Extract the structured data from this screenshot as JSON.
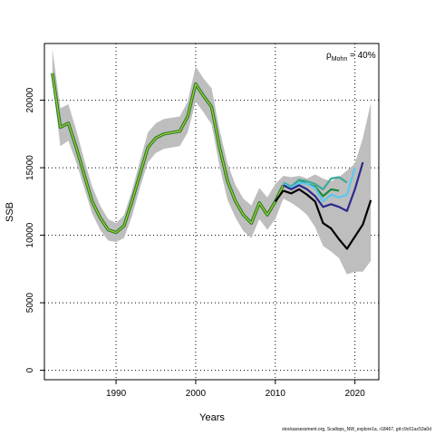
{
  "chart_data": {
    "type": "line",
    "xlabel": "Years",
    "ylabel": "SSB",
    "xlim": [
      1981,
      2023
    ],
    "ylim": [
      -700,
      24200
    ],
    "x_ticks": [
      1990,
      2000,
      2010,
      2020
    ],
    "y_ticks": [
      0,
      5000,
      10000,
      15000,
      20000
    ],
    "grid": "dotted",
    "annotation": {
      "rho": "ρ",
      "subscript": "Mohn",
      "text": " = 40%"
    },
    "base_years": [
      1982,
      1983,
      1984,
      1985,
      1986,
      1987,
      1988,
      1989,
      1990,
      1991,
      1992,
      1993,
      1994,
      1995,
      1996,
      1997,
      1998,
      1999,
      2000,
      2001,
      2002,
      2003,
      2004,
      2005,
      2006,
      2007,
      2008,
      2009,
      2010,
      2011
    ],
    "base_values": [
      22000,
      18000,
      18300,
      16500,
      14500,
      12500,
      11300,
      10400,
      10200,
      10700,
      12500,
      14500,
      16500,
      17200,
      17500,
      17600,
      17700,
      18800,
      21200,
      20300,
      19500,
      16500,
      14000,
      12500,
      11500,
      10900,
      12400,
      11500,
      12500,
      13700
    ],
    "envelope": {
      "years": [
        1982,
        1983,
        1984,
        1985,
        1986,
        1987,
        1988,
        1989,
        1990,
        1991,
        1992,
        1993,
        1994,
        1995,
        1996,
        1997,
        1998,
        1999,
        2000,
        2001,
        2002,
        2003,
        2004,
        2005,
        2006,
        2007,
        2008,
        2009,
        2010,
        2011,
        2012,
        2013,
        2014,
        2015,
        2016,
        2017,
        2018,
        2019,
        2020,
        2021,
        2022
      ],
      "upper": [
        23800,
        19400,
        19700,
        17800,
        15600,
        13600,
        12200,
        11200,
        10900,
        11500,
        13300,
        15500,
        17600,
        18300,
        18600,
        18700,
        18800,
        19900,
        22500,
        21600,
        20900,
        17800,
        15300,
        13700,
        12700,
        12200,
        13500,
        12800,
        13800,
        14400,
        14300,
        14400,
        14200,
        14500,
        14200,
        14000,
        14300,
        14800,
        15300,
        17200,
        19800
      ],
      "lower": [
        21500,
        16600,
        17000,
        15400,
        13500,
        11600,
        10400,
        9600,
        9500,
        9800,
        11400,
        13500,
        15400,
        16100,
        16400,
        16500,
        16600,
        17600,
        19900,
        19100,
        18200,
        15100,
        12600,
        11300,
        10300,
        9800,
        11200,
        10400,
        11200,
        12700,
        12400,
        12000,
        11500,
        10600,
        9200,
        8800,
        8300,
        7100,
        7300,
        7300,
        8100
      ]
    },
    "series": [
      {
        "years": [
          2011,
          2012,
          2013,
          2014,
          2015,
          2016,
          2017,
          2018,
          2019,
          2020,
          2021,
          2022
        ],
        "values": [
          13300,
          13100,
          13400,
          13000,
          12500,
          10900,
          10500,
          9700,
          9000,
          9900,
          10800,
          12600
        ],
        "color": "#000000"
      },
      {
        "years": [
          2011,
          2012,
          2013,
          2014,
          2015,
          2016,
          2017,
          2018,
          2019,
          2020,
          2021
        ],
        "values": [
          13700,
          13400,
          13700,
          13400,
          12900,
          12100,
          12300,
          12100,
          11800,
          13400,
          15400
        ],
        "color": "#2E2A8C"
      },
      {
        "years": [
          2011,
          2012,
          2013,
          2014,
          2015,
          2016,
          2017,
          2018,
          2019,
          2020
        ],
        "values": [
          13800,
          13500,
          13900,
          13800,
          13500,
          12500,
          13000,
          12800,
          13000,
          15000
        ],
        "color": "#5AC8F0"
      },
      {
        "years": [
          2011,
          2012,
          2013,
          2014,
          2015,
          2016,
          2017,
          2018,
          2019
        ],
        "values": [
          13900,
          13600,
          14100,
          14000,
          13800,
          13400,
          14200,
          14300,
          13900
        ],
        "color": "#3AAA96"
      },
      {
        "years": [
          2011,
          2012,
          2013,
          2014,
          2015,
          2016,
          2017,
          2018
        ],
        "values": [
          13800,
          13600,
          14100,
          13800,
          13600,
          12900,
          13400,
          13300
        ],
        "color": "#1A8A3A"
      }
    ],
    "base_outer_color": "#2B7A2B",
    "base_inner_color": "#9ACD32",
    "envelope_color": "#BEBEBE"
  },
  "footer": "stockassessment.org, Scallops_NW_explore1a, r18467, git:c9c61ac53a0d"
}
